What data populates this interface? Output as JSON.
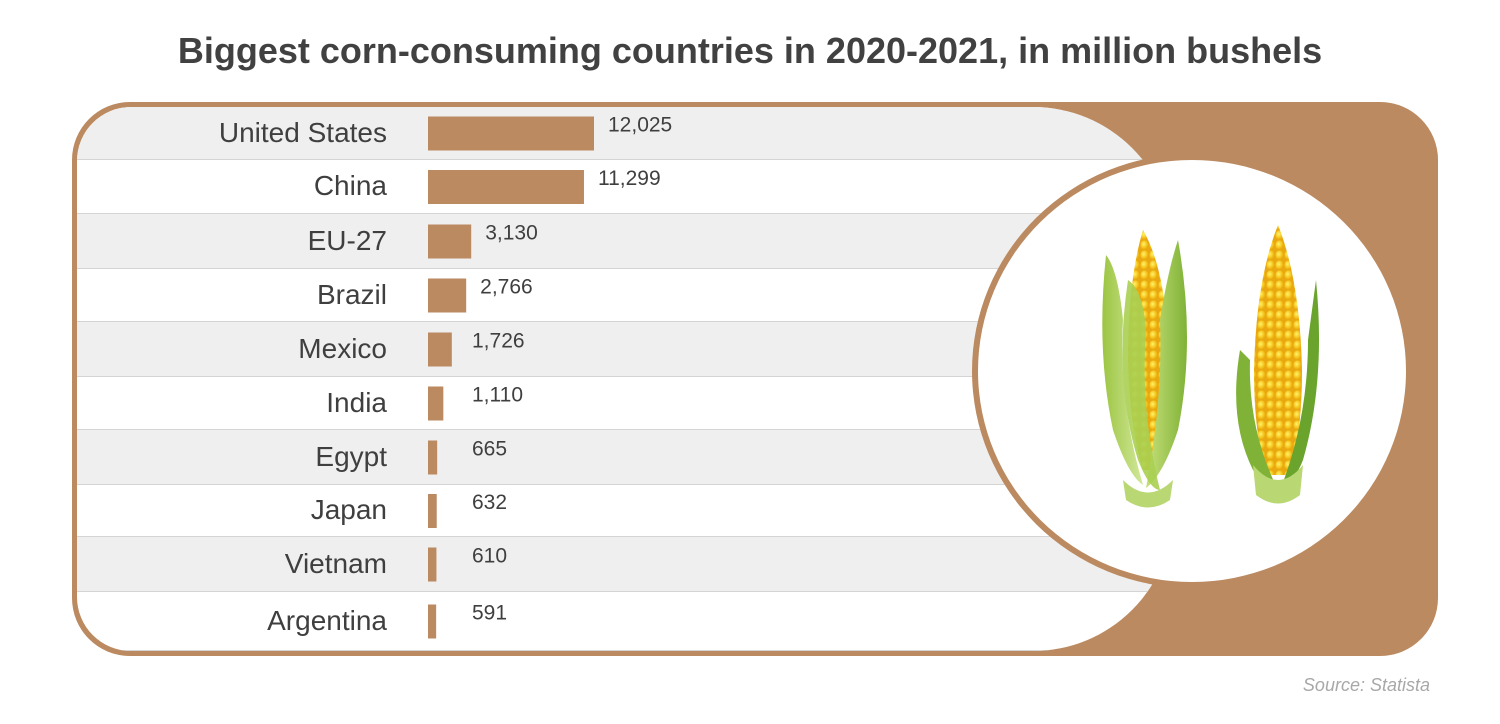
{
  "chart_data": {
    "type": "bar",
    "orientation": "horizontal",
    "title": "Biggest corn-consuming countries in 2020-2021, in million bushels",
    "categories": [
      "United States",
      "China",
      "EU-27",
      "Brazil",
      "Mexico",
      "India",
      "Egypt",
      "Japan",
      "Vietnam",
      "Argentina"
    ],
    "values": [
      12025,
      11299,
      3130,
      2766,
      1726,
      1110,
      665,
      632,
      610,
      591
    ],
    "value_labels": [
      "12,025",
      "11,299",
      "3,130",
      "2,766",
      "1,726",
      "1,110",
      "665",
      "632",
      "610",
      "591"
    ],
    "xlabel": "",
    "ylabel": "",
    "grid": false,
    "bar_color": "#bb8a60"
  },
  "source": "Source: Statista",
  "decoration": {
    "icon": "corn-cobs-illustration",
    "frame_color": "#bb8a60",
    "row_shade_color": "#efefef"
  }
}
